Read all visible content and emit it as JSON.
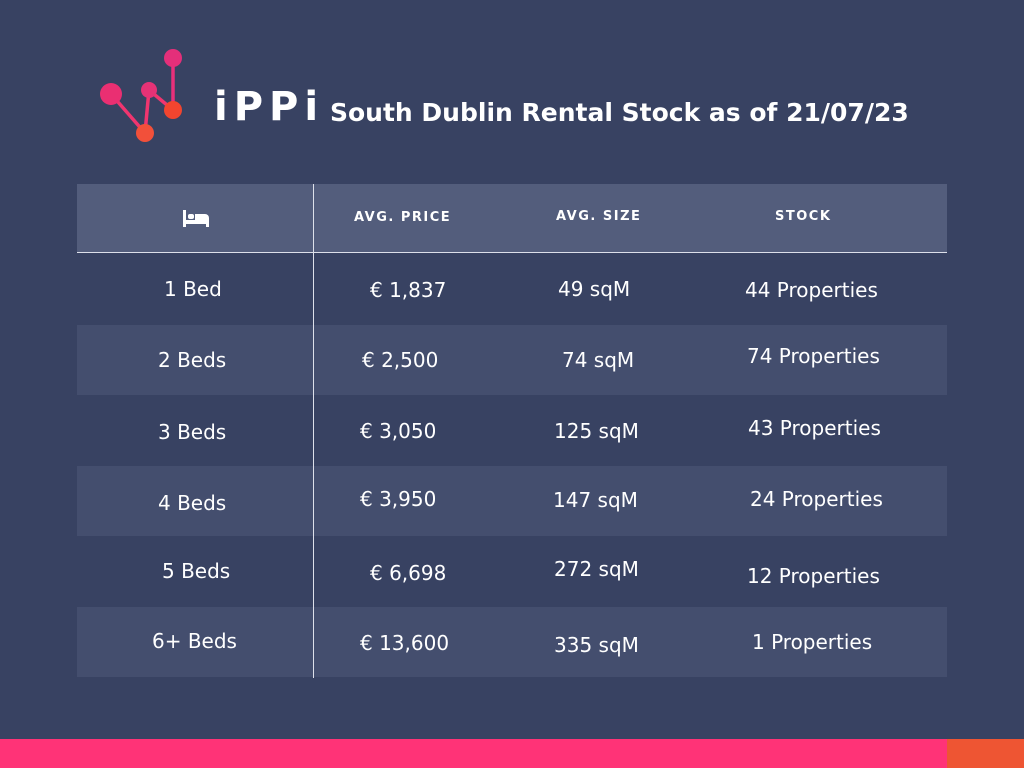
{
  "header": {
    "brand": "iPPi",
    "title": "South Dublin Rental Stock as of 21/07/23"
  },
  "icons": {
    "logo": "network-nodes-logo-icon",
    "bedrooms_column": "bed-icon"
  },
  "colors": {
    "background": "#384262",
    "header_band": "#535d7c",
    "shaded_row": "#444e6e",
    "accent_pink": "#ff3377",
    "accent_orange": "#ee5533"
  },
  "table": {
    "headers": {
      "price": "AVG. PRICE",
      "size": "AVG. SIZE",
      "stock": "STOCK"
    },
    "rows": [
      {
        "beds": "1 Bed",
        "price": "€ 1,837",
        "size": "49 sqM",
        "stock": "44 Properties"
      },
      {
        "beds": "2 Beds",
        "price": "€ 2,500",
        "size": "74 sqM",
        "stock": "74 Properties"
      },
      {
        "beds": "3 Beds",
        "price": "€ 3,050",
        "size": "125 sqM",
        "stock": "43 Properties"
      },
      {
        "beds": "4 Beds",
        "price": "€ 3,950",
        "size": "147 sqM",
        "stock": "24 Properties"
      },
      {
        "beds": "5 Beds",
        "price": "€ 6,698",
        "size": "272 sqM",
        "stock": "12 Properties"
      },
      {
        "beds": "6+ Beds",
        "price": "€ 13,600",
        "size": "335 sqM",
        "stock": "1 Properties"
      }
    ]
  }
}
